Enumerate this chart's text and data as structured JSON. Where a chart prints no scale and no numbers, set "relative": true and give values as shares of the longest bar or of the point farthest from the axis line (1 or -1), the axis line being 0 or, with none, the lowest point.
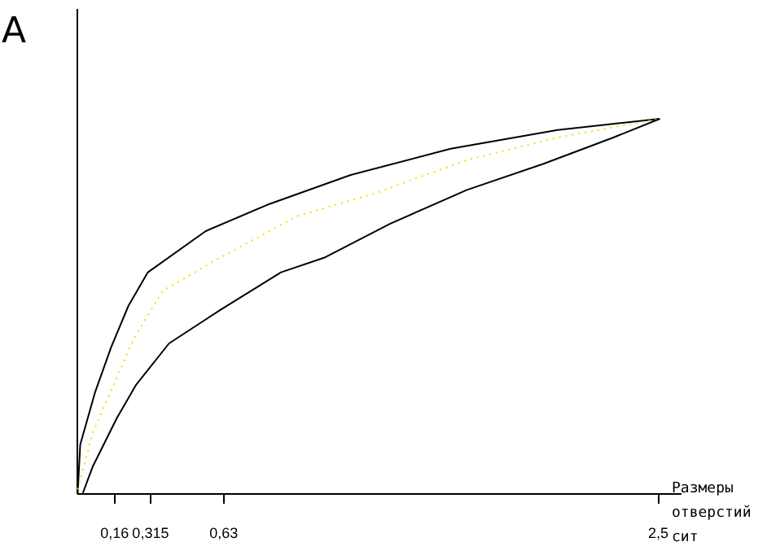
{
  "chart_data": {
    "type": "line",
    "title": "A",
    "xlabel": "Размеры отверстий сит",
    "relative": true,
    "xlim": [
      0,
      2.6
    ],
    "xticks": [
      {
        "value": 0.16,
        "label": "0,16"
      },
      {
        "value": 0.315,
        "label": "0,315"
      },
      {
        "value": 0.63,
        "label": "0,63"
      },
      {
        "value": 2.5,
        "label": "2,5"
      }
    ],
    "series": [
      {
        "color": "#000000",
        "line_style": "solid",
        "x": [
          0.005,
          0.016,
          0.08,
          0.149,
          0.223,
          0.307,
          0.556,
          0.82,
          1.18,
          1.61,
          2.07,
          2.51
        ],
        "values": [
          0,
          0.13,
          0.27,
          0.39,
          0.5,
          0.59,
          0.7,
          0.77,
          0.85,
          0.92,
          0.97,
          1
        ]
      },
      {
        "color": "#ffd700",
        "line_style": "dotted",
        "x": [
          0.005,
          0.069,
          0.16,
          0.244,
          0.37,
          0.62,
          0.95,
          1.28,
          1.68,
          2.07,
          2.51
        ],
        "values": [
          0.01,
          0.16,
          0.29,
          0.41,
          0.54,
          0.63,
          0.74,
          0.8,
          0.89,
          0.95,
          1
        ]
      },
      {
        "color": "#000000",
        "line_style": "solid",
        "x": [
          0.027,
          0.069,
          0.173,
          0.257,
          0.398,
          0.62,
          0.88,
          1.07,
          1.35,
          1.68,
          2.01,
          2.31,
          2.51
        ],
        "values": [
          0,
          0.07,
          0.2,
          0.29,
          0.4,
          0.49,
          0.59,
          0.63,
          0.72,
          0.81,
          0.88,
          0.95,
          1
        ]
      }
    ]
  }
}
